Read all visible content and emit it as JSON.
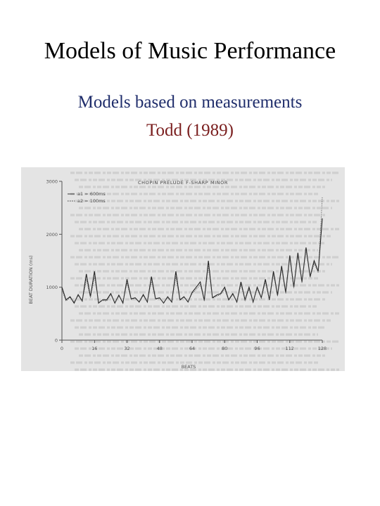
{
  "slide": {
    "title": "Models of Music Performance",
    "subtitle": "Models based on measurements",
    "reference": "Todd (1989)",
    "colors": {
      "subtitle": "#1f2d6b",
      "reference": "#7a1e1e"
    }
  },
  "chart_data": {
    "type": "line",
    "title": "CHOPIN PRELUDE F-SHARP MINOR",
    "xlabel": "BEATS",
    "ylabel": "BEAT DURATION (ms)",
    "xlim": [
      0,
      128
    ],
    "ylim": [
      0,
      3000
    ],
    "xticks": [
      0,
      16,
      32,
      48,
      64,
      80,
      96,
      112,
      128
    ],
    "yticks": [
      0,
      1000,
      2000,
      3000
    ],
    "legend": [
      "a1 = 600ms",
      "a2 = 100ms"
    ],
    "legend_position": "top-left",
    "series": [
      {
        "name": "a1 = 600ms",
        "style": "solid",
        "x": [
          0,
          2,
          4,
          6,
          8,
          10,
          12,
          14,
          16,
          18,
          20,
          22,
          24,
          26,
          28,
          30,
          32,
          34,
          36,
          38,
          40,
          42,
          44,
          46,
          48,
          50,
          52,
          54,
          56,
          58,
          60,
          62,
          64,
          66,
          68,
          70,
          72,
          74,
          76,
          78,
          80,
          82,
          84,
          86,
          88,
          90,
          92,
          94,
          96,
          98,
          100,
          102,
          104,
          106,
          108,
          110,
          112,
          114,
          116,
          118,
          120,
          122,
          124,
          126,
          128
        ],
        "y": [
          1000,
          760,
          820,
          700,
          860,
          740,
          1250,
          820,
          1300,
          700,
          760,
          760,
          880,
          700,
          850,
          700,
          1150,
          780,
          800,
          720,
          860,
          720,
          1200,
          780,
          800,
          700,
          820,
          720,
          1300,
          760,
          820,
          720,
          900,
          1000,
          1100,
          750,
          1500,
          800,
          850,
          880,
          1000,
          760,
          880,
          720,
          1100,
          760,
          1000,
          720,
          1000,
          800,
          1150,
          760,
          1300,
          850,
          1400,
          900,
          1600,
          1000,
          1650,
          1100,
          1750,
          1200,
          1500,
          1300,
          2300
        ]
      },
      {
        "name": "a2 = 100ms",
        "style": "dotted",
        "x": [
          0,
          2,
          4,
          6,
          8,
          10,
          12,
          14,
          16,
          18,
          20,
          22,
          24,
          26,
          28,
          30,
          32,
          34,
          36,
          38,
          40,
          42,
          44,
          46,
          48,
          50,
          52,
          54,
          56,
          58,
          60,
          62,
          64,
          66,
          68,
          70,
          72,
          74,
          76,
          78,
          80,
          82,
          84,
          86,
          88,
          90,
          92,
          94,
          96,
          98,
          100,
          102,
          104,
          106,
          108,
          110,
          112,
          114,
          116,
          118,
          120,
          122,
          124,
          126,
          128
        ],
        "y": [
          950,
          740,
          800,
          720,
          840,
          730,
          1150,
          800,
          1200,
          720,
          750,
          740,
          860,
          710,
          830,
          720,
          1080,
          770,
          790,
          730,
          840,
          730,
          1120,
          770,
          790,
          710,
          800,
          730,
          1200,
          750,
          810,
          730,
          880,
          960,
          1050,
          740,
          1400,
          790,
          830,
          860,
          960,
          750,
          860,
          730,
          1050,
          750,
          960,
          730,
          970,
          790,
          1100,
          760,
          1250,
          830,
          1350,
          880,
          1550,
          980,
          1600,
          1080,
          1700,
          1180,
          1450,
          1280,
          2700
        ]
      }
    ]
  }
}
